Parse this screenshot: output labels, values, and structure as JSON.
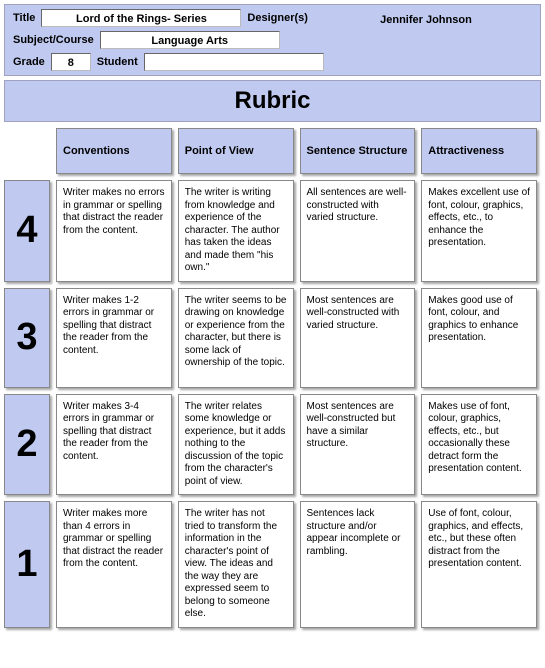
{
  "header": {
    "title_label": "Title",
    "title_value": "Lord of the Rings- Series",
    "designer_label": "Designer(s)",
    "designer_value": "Jennifer Johnson",
    "subject_label": "Subject/Course",
    "subject_value": "Language Arts",
    "grade_label": "Grade",
    "grade_value": "8",
    "student_label": "Student",
    "student_value": ""
  },
  "rubric_title": "Rubric",
  "columns": [
    "Conventions",
    "Point of View",
    "Sentence Structure",
    "Attractiveness"
  ],
  "rows": [
    {
      "score": "4",
      "cells": [
        "Writer makes no errors in grammar or spelling that distract the reader from the content.",
        "The writer is writing from knowledge and experience of the character. The author has taken the ideas and made them \"his own.\"",
        "All sentences are well-constructed with varied structure.",
        "Makes excellent use of font, colour, graphics, effects, etc., to enhance the presentation."
      ]
    },
    {
      "score": "3",
      "cells": [
        "Writer makes 1-2 errors in grammar or spelling that distract the reader from the content.",
        "The writer seems to be drawing on knowledge or experience from the character, but there is some lack of ownership of the topic.",
        "Most sentences are well-constructed with varied structure.",
        "Makes good use of font, colour, and graphics to enhance presentation."
      ]
    },
    {
      "score": "2",
      "cells": [
        "Writer makes 3-4 errors in grammar or spelling that distract the reader from the content.",
        "The writer relates some knowledge or experience, but it adds nothing to the discussion of the topic from the character's point of view.",
        "Most sentences are well-constructed but have a similar structure.",
        "Makes use of font, colour, graphics, effects, etc., but occasionally these detract form the presentation content."
      ]
    },
    {
      "score": "1",
      "cells": [
        "Writer makes more than 4 errors in grammar or spelling that distract the reader from the content.",
        "The writer has not tried to transform the information in the character's point of view. The ideas and the way they are expressed seem to belong to someone else.",
        "Sentences lack structure and/or appear incomplete or rambling.",
        "Use of font, colour, graphics, and effects, etc., but these often distract from the presentation content."
      ]
    }
  ],
  "colors": {
    "panel_bg": "#c0caf0",
    "cell_bg": "#ffffff"
  }
}
